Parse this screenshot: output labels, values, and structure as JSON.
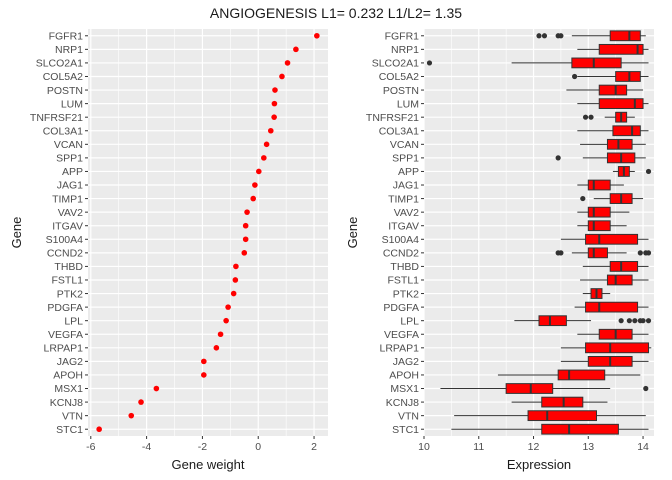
{
  "title": "ANGIOGENESIS L1= 0.232 L1/L2= 1.35",
  "colors": {
    "panel_bg": "#ebebeb",
    "grid": "#ffffff",
    "point": "#ff0000",
    "box_fill": "#ff0000",
    "box_line": "#333333",
    "outlier": "#333333"
  },
  "chart_data": [
    {
      "type": "scatter",
      "xlabel": "Gene weight",
      "ylabel": "Gene",
      "xlim": [
        -6.1,
        2.5
      ],
      "xticks": [
        -6,
        -4,
        -2,
        0,
        2
      ],
      "grid": true,
      "genes": [
        "FGFR1",
        "NRP1",
        "SLCO2A1",
        "COL5A2",
        "POSTN",
        "LUM",
        "TNFRSF21",
        "COL3A1",
        "VCAN",
        "SPP1",
        "APP",
        "JAG1",
        "TIMP1",
        "VAV2",
        "ITGAV",
        "S100A4",
        "CCND2",
        "THBD",
        "FSTL1",
        "PTK2",
        "PDGFA",
        "LPL",
        "VEGFA",
        "LRPAP1",
        "JAG2",
        "APOH",
        "MSX1",
        "KCNJ8",
        "VTN",
        "STC1"
      ],
      "weights": [
        2.1,
        1.35,
        1.05,
        0.85,
        0.6,
        0.58,
        0.57,
        0.45,
        0.3,
        0.2,
        0.02,
        -0.12,
        -0.18,
        -0.4,
        -0.45,
        -0.45,
        -0.5,
        -0.8,
        -0.82,
        -0.88,
        -1.08,
        -1.15,
        -1.35,
        -1.5,
        -1.95,
        -1.95,
        -3.65,
        -4.2,
        -4.55,
        -5.7
      ]
    },
    {
      "type": "box",
      "xlabel": "Expression",
      "ylabel": "Gene",
      "xlim": [
        10.0,
        14.2
      ],
      "xticks": [
        10,
        11,
        12,
        13,
        14
      ],
      "grid": true,
      "genes": [
        "FGFR1",
        "NRP1",
        "SLCO2A1",
        "COL5A2",
        "POSTN",
        "LUM",
        "TNFRSF21",
        "COL3A1",
        "VCAN",
        "SPP1",
        "APP",
        "JAG1",
        "TIMP1",
        "VAV2",
        "ITGAV",
        "S100A4",
        "CCND2",
        "THBD",
        "FSTL1",
        "PTK2",
        "PDGFA",
        "LPL",
        "VEGFA",
        "LRPAP1",
        "JAG2",
        "APOH",
        "MSX1",
        "KCNJ8",
        "VTN",
        "STC1"
      ],
      "boxes": [
        {
          "min": 12.7,
          "q1": 13.4,
          "median": 13.75,
          "q3": 13.95,
          "max": 14.05,
          "outliers": [
            12.1,
            12.2,
            12.45,
            12.5
          ]
        },
        {
          "min": 12.8,
          "q1": 13.2,
          "median": 13.9,
          "q3": 14.0,
          "max": 14.1,
          "outliers": []
        },
        {
          "min": 11.6,
          "q1": 12.7,
          "median": 13.1,
          "q3": 13.6,
          "max": 14.1,
          "outliers": [
            10.1
          ]
        },
        {
          "min": 12.8,
          "q1": 13.5,
          "median": 13.75,
          "q3": 13.95,
          "max": 14.1,
          "outliers": [
            12.75
          ]
        },
        {
          "min": 12.6,
          "q1": 13.2,
          "median": 13.5,
          "q3": 13.7,
          "max": 14.0,
          "outliers": []
        },
        {
          "min": 12.8,
          "q1": 13.2,
          "median": 13.85,
          "q3": 14.0,
          "max": 14.1,
          "outliers": []
        },
        {
          "min": 13.3,
          "q1": 13.5,
          "median": 13.6,
          "q3": 13.7,
          "max": 13.85,
          "outliers": [
            12.95,
            13.05
          ]
        },
        {
          "min": 12.8,
          "q1": 13.45,
          "median": 13.8,
          "q3": 13.95,
          "max": 14.1,
          "outliers": []
        },
        {
          "min": 12.85,
          "q1": 13.35,
          "median": 13.55,
          "q3": 13.8,
          "max": 14.05,
          "outliers": []
        },
        {
          "min": 12.9,
          "q1": 13.35,
          "median": 13.6,
          "q3": 13.85,
          "max": 14.05,
          "outliers": [
            12.45
          ]
        },
        {
          "min": 13.45,
          "q1": 13.55,
          "median": 13.65,
          "q3": 13.75,
          "max": 13.85,
          "outliers": [
            14.1
          ]
        },
        {
          "min": 12.8,
          "q1": 13.0,
          "median": 13.1,
          "q3": 13.4,
          "max": 13.65,
          "outliers": []
        },
        {
          "min": 13.1,
          "q1": 13.4,
          "median": 13.6,
          "q3": 13.8,
          "max": 14.0,
          "outliers": [
            12.9
          ]
        },
        {
          "min": 12.8,
          "q1": 13.0,
          "median": 13.1,
          "q3": 13.4,
          "max": 13.75,
          "outliers": []
        },
        {
          "min": 12.8,
          "q1": 13.0,
          "median": 13.1,
          "q3": 13.4,
          "max": 13.7,
          "outliers": []
        },
        {
          "min": 12.5,
          "q1": 12.95,
          "median": 13.2,
          "q3": 13.9,
          "max": 14.1,
          "outliers": []
        },
        {
          "min": 12.7,
          "q1": 13.0,
          "median": 13.1,
          "q3": 13.35,
          "max": 13.7,
          "outliers": [
            12.45,
            12.5,
            13.95,
            14.05,
            14.1
          ]
        },
        {
          "min": 12.9,
          "q1": 13.4,
          "median": 13.6,
          "q3": 13.9,
          "max": 14.1,
          "outliers": []
        },
        {
          "min": 12.85,
          "q1": 13.35,
          "median": 13.5,
          "q3": 13.8,
          "max": 14.1,
          "outliers": []
        },
        {
          "min": 12.9,
          "q1": 13.05,
          "median": 13.15,
          "q3": 13.25,
          "max": 13.4,
          "outliers": []
        },
        {
          "min": 12.75,
          "q1": 12.95,
          "median": 13.2,
          "q3": 13.9,
          "max": 14.1,
          "outliers": []
        },
        {
          "min": 11.65,
          "q1": 12.1,
          "median": 12.3,
          "q3": 12.6,
          "max": 13.05,
          "outliers": [
            13.6,
            13.75,
            13.85,
            13.95,
            14.0,
            14.1
          ]
        },
        {
          "min": 12.8,
          "q1": 13.2,
          "median": 13.5,
          "q3": 13.8,
          "max": 14.1,
          "outliers": []
        },
        {
          "min": 12.5,
          "q1": 12.95,
          "median": 13.4,
          "q3": 14.1,
          "max": 14.15,
          "outliers": []
        },
        {
          "min": 12.5,
          "q1": 13.0,
          "median": 13.4,
          "q3": 13.8,
          "max": 14.1,
          "outliers": []
        },
        {
          "min": 11.35,
          "q1": 12.45,
          "median": 12.65,
          "q3": 13.3,
          "max": 13.95,
          "outliers": []
        },
        {
          "min": 10.3,
          "q1": 11.5,
          "median": 11.95,
          "q3": 12.35,
          "max": 13.4,
          "outliers": [
            14.05
          ]
        },
        {
          "min": 11.6,
          "q1": 12.15,
          "median": 12.55,
          "q3": 12.9,
          "max": 13.35,
          "outliers": []
        },
        {
          "min": 10.55,
          "q1": 11.9,
          "median": 12.25,
          "q3": 13.15,
          "max": 14.05,
          "outliers": []
        },
        {
          "min": 10.5,
          "q1": 12.15,
          "median": 12.65,
          "q3": 13.55,
          "max": 14.1,
          "outliers": []
        }
      ]
    }
  ]
}
